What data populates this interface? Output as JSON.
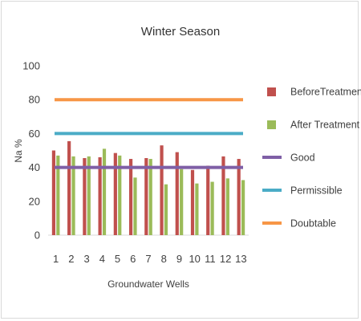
{
  "chart_data": {
    "type": "bar",
    "title": "Winter Season",
    "xlabel": "Groundwater Wells",
    "ylabel": "Na %",
    "ylim": [
      0,
      100
    ],
    "yticks": [
      0,
      20,
      40,
      60,
      80,
      100
    ],
    "categories": [
      "1",
      "2",
      "3",
      "4",
      "5",
      "6",
      "7",
      "8",
      "9",
      "10",
      "11",
      "12",
      "13"
    ],
    "series": [
      {
        "name": "BeforeTreatment",
        "color": "#c0504d",
        "values": [
          50,
          55.5,
          45.5,
          46,
          48.5,
          45,
          45.5,
          53,
          49,
          38.5,
          41,
          46.5,
          45
        ]
      },
      {
        "name": "After Treatment",
        "color": "#9bbb59",
        "values": [
          47,
          46.5,
          46.5,
          51,
          47,
          34,
          45,
          30,
          39,
          30.5,
          31.5,
          33.5,
          32.5
        ]
      }
    ],
    "reference_lines": [
      {
        "name": "Good",
        "color": "#7f5fa6",
        "value": 40
      },
      {
        "name": "Permissible",
        "color": "#4bacc6",
        "value": 60
      },
      {
        "name": "Doubtable",
        "color": "#f79646",
        "value": 80
      }
    ],
    "grid": false,
    "legend": "right"
  }
}
